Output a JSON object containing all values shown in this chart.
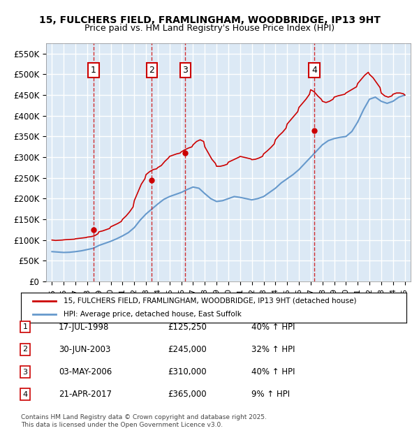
{
  "title_line1": "15, FULCHERS FIELD, FRAMLINGHAM, WOODBRIDGE, IP13 9HT",
  "title_line2": "Price paid vs. HM Land Registry's House Price Index (HPI)",
  "ylabel_ticks": [
    "£0",
    "£50K",
    "£100K",
    "£150K",
    "£200K",
    "£250K",
    "£300K",
    "£350K",
    "£400K",
    "£450K",
    "£500K",
    "£550K"
  ],
  "ytick_values": [
    0,
    50000,
    100000,
    150000,
    200000,
    250000,
    300000,
    350000,
    400000,
    450000,
    500000,
    550000
  ],
  "xlim_start": 1994.5,
  "xlim_end": 2025.5,
  "ylim_min": 0,
  "ylim_max": 575000,
  "bg_color": "#dce9f5",
  "plot_bg_color": "#dce9f5",
  "grid_color": "#ffffff",
  "sale_color": "#cc0000",
  "hpi_color": "#6699cc",
  "transaction_dates": [
    1998.54,
    2003.49,
    2006.34,
    2017.31
  ],
  "transaction_prices": [
    125250,
    245000,
    310000,
    365000
  ],
  "transaction_labels": [
    "1",
    "2",
    "3",
    "4"
  ],
  "legend_sale_label": "15, FULCHERS FIELD, FRAMLINGHAM, WOODBRIDGE, IP13 9HT (detached house)",
  "legend_hpi_label": "HPI: Average price, detached house, East Suffolk",
  "table_rows": [
    {
      "num": "1",
      "date": "17-JUL-1998",
      "price": "£125,250",
      "pct": "40% ↑ HPI"
    },
    {
      "num": "2",
      "date": "30-JUN-2003",
      "price": "£245,000",
      "pct": "32% ↑ HPI"
    },
    {
      "num": "3",
      "date": "03-MAY-2006",
      "price": "£310,000",
      "pct": "40% ↑ HPI"
    },
    {
      "num": "4",
      "date": "21-APR-2017",
      "price": "£365,000",
      "pct": "9% ↑ HPI"
    }
  ],
  "footnote": "Contains HM Land Registry data © Crown copyright and database right 2025.\nThis data is licensed under the Open Government Licence v3.0.",
  "hpi_years": [
    1995,
    1995.5,
    1996,
    1996.5,
    1997,
    1997.5,
    1998,
    1998.5,
    1999,
    1999.5,
    2000,
    2000.5,
    2001,
    2001.5,
    2002,
    2002.5,
    2003,
    2003.5,
    2004,
    2004.5,
    2005,
    2005.5,
    2006,
    2006.5,
    2007,
    2007.5,
    2008,
    2008.5,
    2009,
    2009.5,
    2010,
    2010.5,
    2011,
    2011.5,
    2012,
    2012.5,
    2013,
    2013.5,
    2014,
    2014.5,
    2015,
    2015.5,
    2016,
    2016.5,
    2017,
    2017.5,
    2018,
    2018.5,
    2019,
    2019.5,
    2020,
    2020.5,
    2021,
    2021.5,
    2022,
    2022.5,
    2023,
    2023.5,
    2024,
    2024.5,
    2025
  ],
  "hpi_values": [
    72000,
    71000,
    70000,
    70500,
    72000,
    74000,
    77000,
    80000,
    87000,
    92000,
    97000,
    103000,
    110000,
    118000,
    130000,
    148000,
    163000,
    175000,
    187000,
    198000,
    205000,
    210000,
    215000,
    222000,
    228000,
    225000,
    212000,
    200000,
    193000,
    195000,
    200000,
    205000,
    203000,
    200000,
    197000,
    200000,
    205000,
    215000,
    225000,
    238000,
    248000,
    258000,
    270000,
    285000,
    300000,
    315000,
    330000,
    340000,
    345000,
    348000,
    350000,
    362000,
    385000,
    415000,
    440000,
    445000,
    435000,
    430000,
    435000,
    445000,
    450000
  ],
  "sale_years": [
    1995,
    1995.3,
    1995.6,
    1995.9,
    1996,
    1996.3,
    1996.6,
    1996.9,
    1997,
    1997.3,
    1997.6,
    1997.9,
    1998,
    1998.3,
    1998.6,
    1998.9,
    1999,
    1999.3,
    1999.6,
    1999.9,
    2000,
    2000.3,
    2000.6,
    2000.9,
    2001,
    2001.3,
    2001.6,
    2001.9,
    2002,
    2002.3,
    2002.6,
    2002.9,
    2003,
    2003.3,
    2003.6,
    2003.9,
    2004,
    2004.3,
    2004.6,
    2004.9,
    2005,
    2005.3,
    2005.6,
    2005.9,
    2006,
    2006.3,
    2006.6,
    2006.9,
    2007,
    2007.3,
    2007.6,
    2007.9,
    2008,
    2008.3,
    2008.6,
    2008.9,
    2009,
    2009.3,
    2009.6,
    2009.9,
    2010,
    2010.3,
    2010.6,
    2010.9,
    2011,
    2011.3,
    2011.6,
    2011.9,
    2012,
    2012.3,
    2012.6,
    2012.9,
    2013,
    2013.3,
    2013.6,
    2013.9,
    2014,
    2014.3,
    2014.6,
    2014.9,
    2015,
    2015.3,
    2015.6,
    2015.9,
    2016,
    2016.3,
    2016.6,
    2016.9,
    2017,
    2017.3,
    2017.6,
    2017.9,
    2018,
    2018.3,
    2018.6,
    2018.9,
    2019,
    2019.3,
    2019.6,
    2019.9,
    2020,
    2020.3,
    2020.6,
    2020.9,
    2021,
    2021.3,
    2021.6,
    2021.9,
    2022,
    2022.3,
    2022.6,
    2022.9,
    2023,
    2023.3,
    2023.6,
    2023.9,
    2024,
    2024.3,
    2024.6,
    2024.9,
    2025
  ],
  "sale_values": [
    100000,
    99000,
    99500,
    100000,
    100500,
    101000,
    101500,
    102000,
    103000,
    104000,
    105000,
    106000,
    107000,
    108000,
    110000,
    115000,
    120000,
    122000,
    125000,
    128000,
    132000,
    136000,
    140000,
    145000,
    150000,
    158000,
    168000,
    180000,
    195000,
    215000,
    235000,
    248000,
    258000,
    265000,
    270000,
    272000,
    275000,
    280000,
    290000,
    298000,
    302000,
    305000,
    308000,
    310000,
    313000,
    318000,
    322000,
    325000,
    330000,
    338000,
    342000,
    338000,
    325000,
    310000,
    295000,
    285000,
    278000,
    278000,
    280000,
    283000,
    288000,
    292000,
    296000,
    300000,
    302000,
    300000,
    298000,
    296000,
    294000,
    295000,
    298000,
    302000,
    308000,
    315000,
    323000,
    332000,
    342000,
    352000,
    360000,
    370000,
    380000,
    390000,
    400000,
    410000,
    420000,
    430000,
    440000,
    452000,
    463000,
    458000,
    448000,
    440000,
    435000,
    432000,
    435000,
    440000,
    445000,
    448000,
    450000,
    452000,
    455000,
    460000,
    465000,
    470000,
    478000,
    488000,
    498000,
    505000,
    500000,
    492000,
    480000,
    468000,
    455000,
    448000,
    445000,
    448000,
    452000,
    455000,
    455000,
    453000,
    450000
  ]
}
